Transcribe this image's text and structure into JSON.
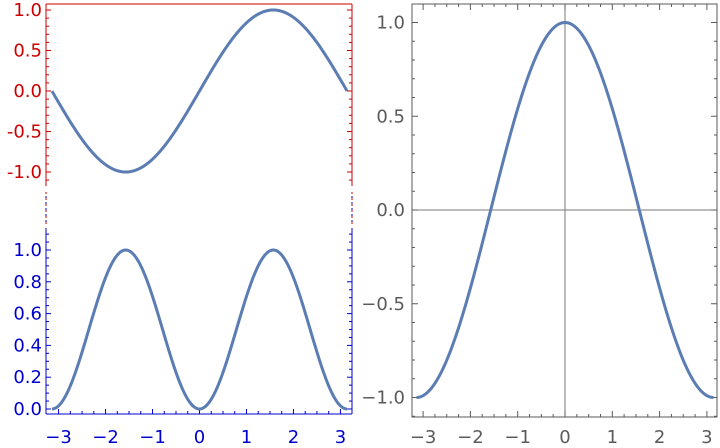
{
  "colors": {
    "curve": "#5b7db3",
    "top_axis": "#cc0000",
    "bottom_axis": "#0000cc",
    "right_axis": "#5a5a5a",
    "zero_line": "#7a7a7a"
  },
  "chart_data": [
    {
      "type": "line",
      "panel": "top-left",
      "title": "",
      "xlabel": "",
      "ylabel": "",
      "xlim": [
        -3.1416,
        3.1416
      ],
      "ylim": [
        -1.1,
        1.1
      ],
      "function": "sin(x)",
      "series": [
        {
          "x": [
            -3.14,
            -2.79,
            -2.44,
            -2.09,
            -1.75,
            -1.57,
            -1.4,
            -1.05,
            -0.7,
            -0.35,
            0.0,
            0.35,
            0.7,
            1.05,
            1.4,
            1.57,
            1.75,
            2.09,
            2.44,
            2.79,
            3.14
          ],
          "values": [
            0.0,
            -0.34,
            -0.64,
            -0.87,
            -0.98,
            -1.0,
            -0.98,
            -0.87,
            -0.64,
            -0.34,
            0.0,
            0.34,
            0.64,
            0.87,
            0.98,
            1.0,
            0.98,
            0.87,
            0.64,
            0.34,
            0.0
          ]
        }
      ],
      "y_ticks": [
        "1.0",
        "0.5",
        "0.0",
        "-0.5",
        "-1.0"
      ],
      "y_tick_values": [
        1.0,
        0.5,
        0.0,
        -0.5,
        -1.0
      ],
      "grid": false
    },
    {
      "type": "line",
      "panel": "bottom-left",
      "title": "",
      "xlabel": "",
      "ylabel": "",
      "xlim": [
        -3.1416,
        3.1416
      ],
      "ylim": [
        -0.02,
        1.1
      ],
      "function": "sin(x)^2",
      "series": [
        {
          "x": [
            -3.14,
            -2.79,
            -2.44,
            -2.09,
            -1.75,
            -1.57,
            -1.4,
            -1.05,
            -0.7,
            -0.35,
            0.0,
            0.35,
            0.7,
            1.05,
            1.4,
            1.57,
            1.75,
            2.09,
            2.44,
            2.79,
            3.14
          ],
          "values": [
            0.0,
            0.12,
            0.41,
            0.75,
            0.97,
            1.0,
            0.97,
            0.75,
            0.41,
            0.12,
            0.0,
            0.12,
            0.41,
            0.75,
            0.97,
            1.0,
            0.97,
            0.75,
            0.41,
            0.12,
            0.0
          ]
        }
      ],
      "x_ticks": [
        "−3",
        "−2",
        "−1",
        "0",
        "1",
        "2",
        "3"
      ],
      "x_tick_values": [
        -3,
        -2,
        -1,
        0,
        1,
        2,
        3
      ],
      "y_ticks": [
        "1.0",
        "0.8",
        "0.6",
        "0.4",
        "0.2",
        "0.0"
      ],
      "y_tick_values": [
        1.0,
        0.8,
        0.6,
        0.4,
        0.2,
        0.0
      ],
      "grid": false
    },
    {
      "type": "line",
      "panel": "right",
      "title": "",
      "xlabel": "",
      "ylabel": "",
      "xlim": [
        -3.25,
        3.25
      ],
      "ylim": [
        -1.11,
        1.11
      ],
      "function": "cos(x)",
      "series": [
        {
          "x": [
            -3.14,
            -2.79,
            -2.44,
            -2.09,
            -1.75,
            -1.57,
            -1.4,
            -1.05,
            -0.7,
            -0.35,
            0.0,
            0.35,
            0.7,
            1.05,
            1.4,
            1.57,
            1.75,
            2.09,
            2.44,
            2.79,
            3.14
          ],
          "values": [
            -1.0,
            -0.94,
            -0.77,
            -0.5,
            -0.17,
            0.0,
            0.17,
            0.5,
            0.77,
            0.94,
            1.0,
            0.94,
            0.77,
            0.5,
            0.17,
            0.0,
            -0.17,
            -0.5,
            -0.77,
            -0.94,
            -1.0
          ]
        }
      ],
      "x_ticks": [
        "−3",
        "−2",
        "−1",
        "0",
        "1",
        "2",
        "3"
      ],
      "x_tick_values": [
        -3,
        -2,
        -1,
        0,
        1,
        2,
        3
      ],
      "y_ticks": [
        "1.0",
        "0.5",
        "0.0",
        "−0.5",
        "−1.0"
      ],
      "y_tick_values": [
        1.0,
        0.5,
        0.0,
        -0.5,
        -1.0
      ],
      "grid": false,
      "zero_lines": true
    }
  ]
}
